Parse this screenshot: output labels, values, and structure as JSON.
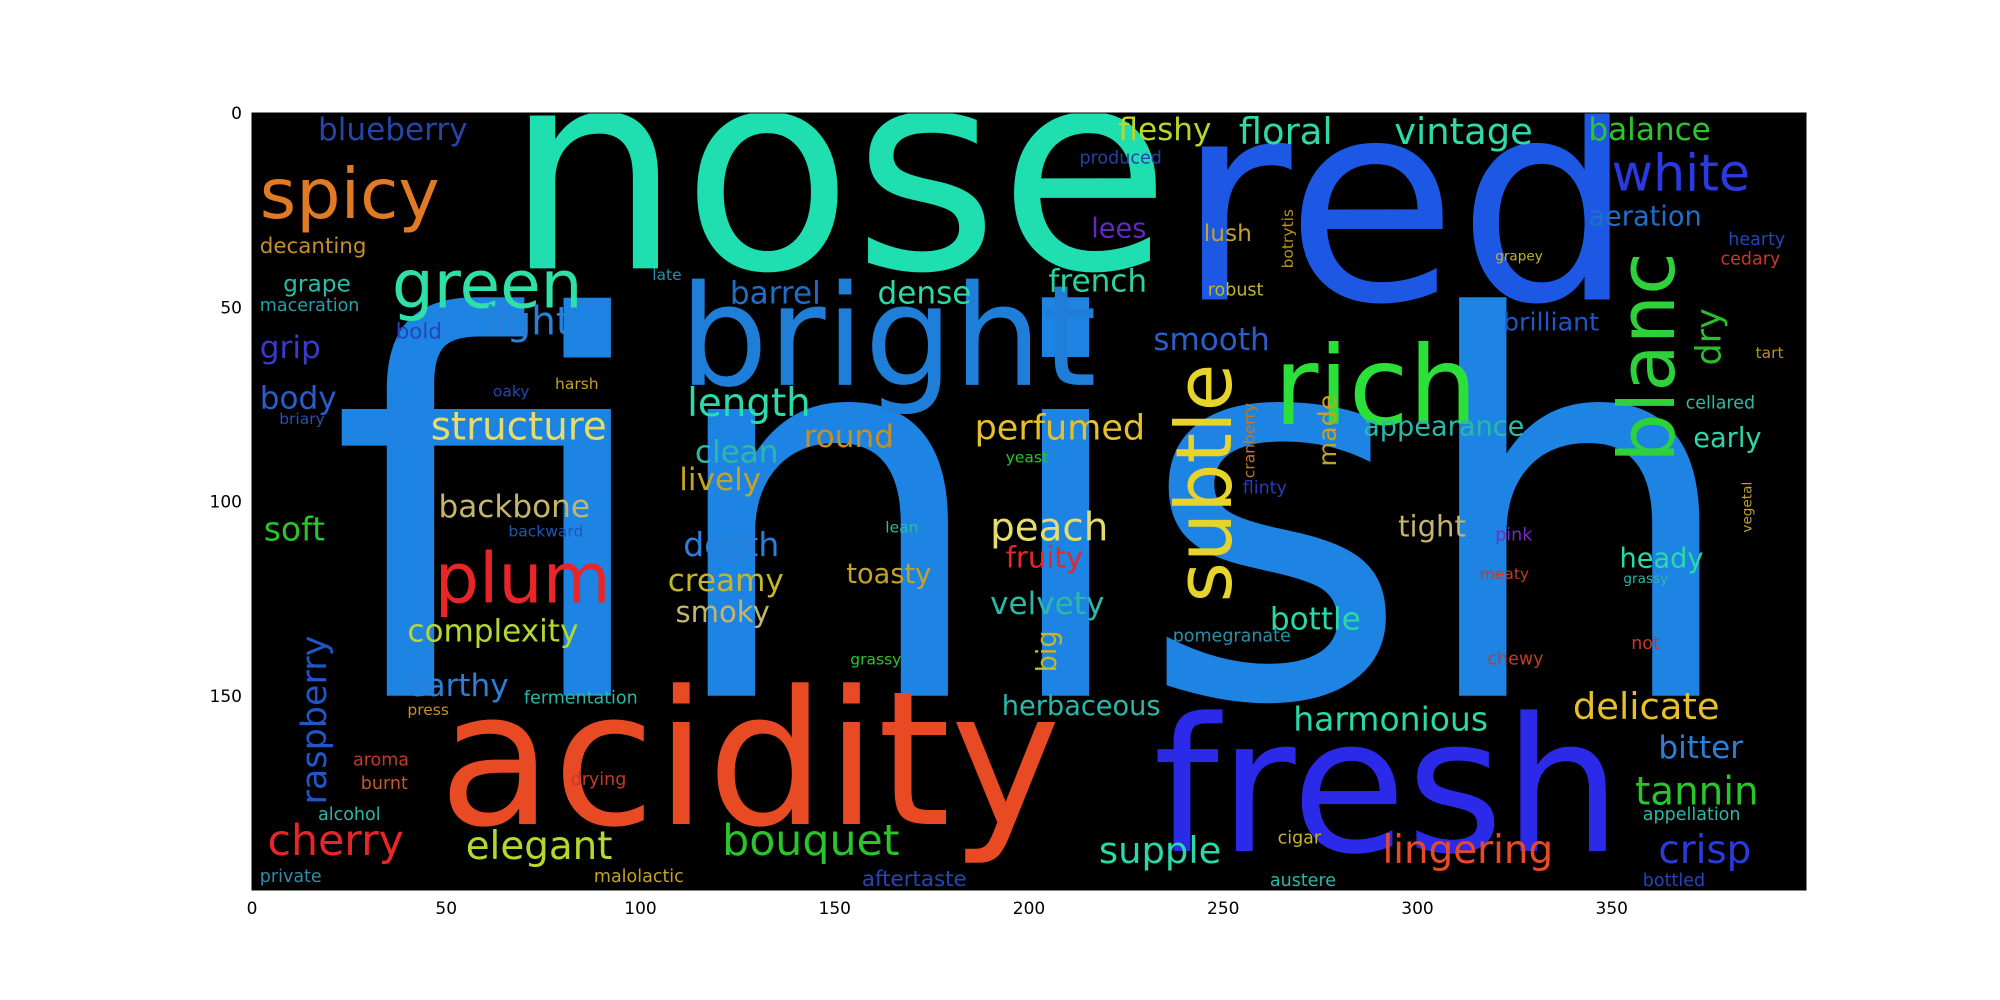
{
  "chart_data": {
    "type": "wordcloud",
    "title": "",
    "xlabel": "",
    "ylabel": "",
    "xlim": [
      0,
      400
    ],
    "ylim": [
      200,
      0
    ],
    "xticks": [
      "0",
      "50",
      "100",
      "150",
      "200",
      "250",
      "300",
      "350"
    ],
    "yticks": [
      "0",
      "50",
      "100",
      "150"
    ],
    "grid": false,
    "words": [
      {
        "text": "finish",
        "x": 20,
        "y": 150,
        "size": 135,
        "color": "#1d84e3",
        "rotate": 0
      },
      {
        "text": "nose",
        "x": 65,
        "y": 40,
        "size": 72,
        "color": "#1fdfb0",
        "rotate": 0
      },
      {
        "text": "red",
        "x": 238,
        "y": 48,
        "size": 72,
        "color": "#1c58e3",
        "rotate": 0
      },
      {
        "text": "acidity",
        "x": 48,
        "y": 183,
        "size": 48,
        "color": "#e84a23",
        "rotate": 0
      },
      {
        "text": "fresh",
        "x": 232,
        "y": 190,
        "size": 48,
        "color": "#2a2ae8",
        "rotate": 0
      },
      {
        "text": "bright",
        "x": 110,
        "y": 70,
        "size": 36,
        "color": "#1f7fd8",
        "rotate": 0
      },
      {
        "text": "rich",
        "x": 263,
        "y": 80,
        "size": 28,
        "color": "#2ce03a",
        "rotate": 0
      },
      {
        "text": "subtle",
        "x": 252,
        "y": 126,
        "size": 20,
        "color": "#e6d42a",
        "rotate": -90
      },
      {
        "text": "blanc",
        "x": 366,
        "y": 90,
        "size": 20,
        "color": "#2dd23a",
        "rotate": -90
      },
      {
        "text": "spicy",
        "x": 2,
        "y": 27,
        "size": 18,
        "color": "#e07a25",
        "rotate": 0
      },
      {
        "text": "green",
        "x": 36,
        "y": 50,
        "size": 17,
        "color": "#2ee0a8",
        "rotate": 0
      },
      {
        "text": "plum",
        "x": 47,
        "y": 126,
        "size": 18,
        "color": "#e8262a",
        "rotate": 0
      },
      {
        "text": "white",
        "x": 350,
        "y": 20,
        "size": 13,
        "color": "#2a3ae0",
        "rotate": 0
      },
      {
        "text": "raspberry",
        "x": 19,
        "y": 178,
        "size": 9,
        "color": "#1f56c8",
        "rotate": -90
      },
      {
        "text": "floral",
        "x": 254,
        "y": 8,
        "size": 9.5,
        "color": "#2ddaa8",
        "rotate": 0
      },
      {
        "text": "vintage",
        "x": 294,
        "y": 8,
        "size": 9.5,
        "color": "#2ddaa8",
        "rotate": 0
      },
      {
        "text": "fleshy",
        "x": 223,
        "y": 7,
        "size": 8,
        "color": "#b5d82a",
        "rotate": 0
      },
      {
        "text": "balance",
        "x": 344,
        "y": 7,
        "size": 8,
        "color": "#2dc42d",
        "rotate": 0
      },
      {
        "text": "blueberry",
        "x": 17,
        "y": 7,
        "size": 8,
        "color": "#2745a8",
        "rotate": 0
      },
      {
        "text": "aeration",
        "x": 344,
        "y": 29,
        "size": 7,
        "color": "#1f6fc9",
        "rotate": 0
      },
      {
        "text": "produced",
        "x": 213,
        "y": 13,
        "size": 4.5,
        "color": "#2340a8",
        "rotate": 0
      },
      {
        "text": "decanting",
        "x": 2,
        "y": 36,
        "size": 5.5,
        "color": "#c48f2a",
        "rotate": 0
      },
      {
        "text": "lees",
        "x": 216,
        "y": 32,
        "size": 7,
        "color": "#6228c0",
        "rotate": 0
      },
      {
        "text": "lush",
        "x": 245,
        "y": 33,
        "size": 6,
        "color": "#c4a225",
        "rotate": 0
      },
      {
        "text": "botrytis",
        "x": 268,
        "y": 40,
        "size": 4,
        "color": "#b8921f",
        "rotate": -90
      },
      {
        "text": "hearty",
        "x": 380,
        "y": 34,
        "size": 4.5,
        "color": "#2545b8",
        "rotate": 0
      },
      {
        "text": "cedary",
        "x": 378,
        "y": 39,
        "size": 4.5,
        "color": "#c43a2a",
        "rotate": 0
      },
      {
        "text": "grapey",
        "x": 320,
        "y": 38,
        "size": 3.5,
        "color": "#c4b52a",
        "rotate": 0
      },
      {
        "text": "grape",
        "x": 8,
        "y": 46,
        "size": 6,
        "color": "#2dbba8",
        "rotate": 0
      },
      {
        "text": "late",
        "x": 103,
        "y": 43,
        "size": 4,
        "color": "#2a8fa8",
        "rotate": 0
      },
      {
        "text": "barrel",
        "x": 123,
        "y": 49,
        "size": 8,
        "color": "#1f6fc9",
        "rotate": 0
      },
      {
        "text": "dense",
        "x": 161,
        "y": 49,
        "size": 8,
        "color": "#2ddaa8",
        "rotate": 0
      },
      {
        "text": "french",
        "x": 205,
        "y": 46,
        "size": 8,
        "color": "#2dd2a0",
        "rotate": 0
      },
      {
        "text": "robust",
        "x": 246,
        "y": 47,
        "size": 4.5,
        "color": "#c4b52a",
        "rotate": 0
      },
      {
        "text": "dry",
        "x": 378,
        "y": 65,
        "size": 9,
        "color": "#2dbc2d",
        "rotate": -90
      },
      {
        "text": "maceration",
        "x": 2,
        "y": 51,
        "size": 4.5,
        "color": "#2a9fa8",
        "rotate": 0
      },
      {
        "text": "light",
        "x": 60,
        "y": 57,
        "size": 10,
        "color": "#2a80d8",
        "rotate": 0
      },
      {
        "text": "bold",
        "x": 37,
        "y": 58,
        "size": 5.5,
        "color": "#2545b8",
        "rotate": 0
      },
      {
        "text": "brilliant",
        "x": 322,
        "y": 56,
        "size": 6.5,
        "color": "#1f56c8",
        "rotate": 0
      },
      {
        "text": "grip",
        "x": 2,
        "y": 63,
        "size": 8,
        "color": "#3a3acb",
        "rotate": 0
      },
      {
        "text": "smooth",
        "x": 232,
        "y": 61,
        "size": 8,
        "color": "#2a5ec8",
        "rotate": 0
      },
      {
        "text": "tart",
        "x": 387,
        "y": 63,
        "size": 4,
        "color": "#b8921f",
        "rotate": 0
      },
      {
        "text": "harsh",
        "x": 78,
        "y": 71,
        "size": 4,
        "color": "#c4a225",
        "rotate": 0
      },
      {
        "text": "oaky",
        "x": 62,
        "y": 73,
        "size": 4,
        "color": "#2545b8",
        "rotate": 0
      },
      {
        "text": "cranberry",
        "x": 258,
        "y": 94,
        "size": 4,
        "color": "#c47a25",
        "rotate": -90
      },
      {
        "text": "body",
        "x": 2,
        "y": 76,
        "size": 8,
        "color": "#2a5ec8",
        "rotate": 0
      },
      {
        "text": "briary",
        "x": 7,
        "y": 80,
        "size": 4,
        "color": "#2a50b8",
        "rotate": 0
      },
      {
        "text": "length",
        "x": 112,
        "y": 78,
        "size": 10,
        "color": "#2ddaa8",
        "rotate": 0
      },
      {
        "text": "structure",
        "x": 46,
        "y": 84,
        "size": 10,
        "color": "#e6dc6a",
        "rotate": 0
      },
      {
        "text": "perfumed",
        "x": 186,
        "y": 84,
        "size": 9,
        "color": "#e6c02a",
        "rotate": 0
      },
      {
        "text": "made",
        "x": 279,
        "y": 91,
        "size": 6.5,
        "color": "#c4a225",
        "rotate": -90
      },
      {
        "text": "appearance",
        "x": 286,
        "y": 83,
        "size": 7,
        "color": "#2ab8a8",
        "rotate": 0
      },
      {
        "text": "cellared",
        "x": 369,
        "y": 76,
        "size": 4.5,
        "color": "#2abba8",
        "rotate": 0
      },
      {
        "text": "early",
        "x": 371,
        "y": 86,
        "size": 7,
        "color": "#2ad8a8",
        "rotate": 0
      },
      {
        "text": "round",
        "x": 142,
        "y": 86,
        "size": 8,
        "color": "#c48f2a",
        "rotate": 0
      },
      {
        "text": "clean",
        "x": 114,
        "y": 90,
        "size": 8,
        "color": "#2ab8a8",
        "rotate": 0
      },
      {
        "text": "yeast",
        "x": 194,
        "y": 90,
        "size": 4,
        "color": "#2ac42d",
        "rotate": 0
      },
      {
        "text": "lively",
        "x": 110,
        "y": 97,
        "size": 8,
        "color": "#c4a225",
        "rotate": 0
      },
      {
        "text": "flinty",
        "x": 255,
        "y": 98,
        "size": 4.5,
        "color": "#2a3ab8",
        "rotate": 0
      },
      {
        "text": "vegetal",
        "x": 386,
        "y": 108,
        "size": 3.5,
        "color": "#c4a225",
        "rotate": -90
      },
      {
        "text": "backbone",
        "x": 48,
        "y": 104,
        "size": 8,
        "color": "#c4b56a",
        "rotate": 0
      },
      {
        "text": "backward",
        "x": 66,
        "y": 109,
        "size": 4,
        "color": "#1f56b8",
        "rotate": 0
      },
      {
        "text": "soft",
        "x": 3,
        "y": 110,
        "size": 8.5,
        "color": "#2ac42d",
        "rotate": 0
      },
      {
        "text": "peach",
        "x": 190,
        "y": 110,
        "size": 10,
        "color": "#e6dc6a",
        "rotate": 0
      },
      {
        "text": "tight",
        "x": 295,
        "y": 109,
        "size": 7.5,
        "color": "#c4b56a",
        "rotate": 0
      },
      {
        "text": "lean",
        "x": 163,
        "y": 108,
        "size": 4,
        "color": "#2abba8",
        "rotate": 0
      },
      {
        "text": "pink",
        "x": 320,
        "y": 110,
        "size": 4.5,
        "color": "#7a2ac0",
        "rotate": 0
      },
      {
        "text": "depth",
        "x": 111,
        "y": 114,
        "size": 8.5,
        "color": "#2a80d8",
        "rotate": 0
      },
      {
        "text": "fruity",
        "x": 194,
        "y": 117,
        "size": 7.5,
        "color": "#e8262a",
        "rotate": 0
      },
      {
        "text": "heady",
        "x": 352,
        "y": 117,
        "size": 7,
        "color": "#2ad8a8",
        "rotate": 0
      },
      {
        "text": "toasty",
        "x": 153,
        "y": 121,
        "size": 7,
        "color": "#c4a225",
        "rotate": 0
      },
      {
        "text": "meaty",
        "x": 316,
        "y": 120,
        "size": 4,
        "color": "#c43a2a",
        "rotate": 0
      },
      {
        "text": "grassy",
        "x": 353,
        "y": 121,
        "size": 3.5,
        "color": "#2ab8a8",
        "rotate": 0
      },
      {
        "text": "creamy",
        "x": 107,
        "y": 123,
        "size": 8,
        "color": "#c4b52a",
        "rotate": 0
      },
      {
        "text": "velvety",
        "x": 190,
        "y": 129,
        "size": 8,
        "color": "#2ab8a8",
        "rotate": 0
      },
      {
        "text": "smoky",
        "x": 109,
        "y": 131,
        "size": 7.5,
        "color": "#c4b56a",
        "rotate": 0
      },
      {
        "text": "bottle",
        "x": 262,
        "y": 133,
        "size": 8,
        "color": "#2ad8a8",
        "rotate": 0
      },
      {
        "text": "complexity",
        "x": 40,
        "y": 136,
        "size": 8,
        "color": "#b5d82a",
        "rotate": 0
      },
      {
        "text": "big",
        "x": 207,
        "y": 144,
        "size": 7,
        "color": "#c4b52a",
        "rotate": -90
      },
      {
        "text": "pomegranate",
        "x": 237,
        "y": 136,
        "size": 4.5,
        "color": "#2a8fa8",
        "rotate": 0
      },
      {
        "text": "not",
        "x": 355,
        "y": 138,
        "size": 4.5,
        "color": "#c43a2a",
        "rotate": 0
      },
      {
        "text": "chewy",
        "x": 318,
        "y": 142,
        "size": 4.5,
        "color": "#c43a2a",
        "rotate": 0
      },
      {
        "text": "grassy",
        "x": 154,
        "y": 142,
        "size": 4,
        "color": "#2ac42d",
        "rotate": 0
      },
      {
        "text": "earthy",
        "x": 40,
        "y": 150,
        "size": 8,
        "color": "#2a80d8",
        "rotate": 0
      },
      {
        "text": "fermentation",
        "x": 70,
        "y": 152,
        "size": 4.5,
        "color": "#2ab8a8",
        "rotate": 0
      },
      {
        "text": "press",
        "x": 40,
        "y": 155,
        "size": 4,
        "color": "#c48f2a",
        "rotate": 0
      },
      {
        "text": "herbaceous",
        "x": 193,
        "y": 155,
        "size": 7,
        "color": "#2ab8a8",
        "rotate": 0
      },
      {
        "text": "harmonious",
        "x": 268,
        "y": 159,
        "size": 8.5,
        "color": "#2ad8a8",
        "rotate": 0
      },
      {
        "text": "delicate",
        "x": 340,
        "y": 156,
        "size": 9.5,
        "color": "#e6c02a",
        "rotate": 0
      },
      {
        "text": "bitter",
        "x": 362,
        "y": 166,
        "size": 8,
        "color": "#2a80d8",
        "rotate": 0
      },
      {
        "text": "aroma",
        "x": 26,
        "y": 168,
        "size": 4.5,
        "color": "#c43a2a",
        "rotate": 0
      },
      {
        "text": "burnt",
        "x": 28,
        "y": 174,
        "size": 4.5,
        "color": "#c4582a",
        "rotate": 0
      },
      {
        "text": "drying",
        "x": 82,
        "y": 173,
        "size": 4.5,
        "color": "#c43a2a",
        "rotate": 0
      },
      {
        "text": "tannin",
        "x": 356,
        "y": 178,
        "size": 10,
        "color": "#2ac42d",
        "rotate": 0
      },
      {
        "text": "alcohol",
        "x": 17,
        "y": 182,
        "size": 4.5,
        "color": "#2ab8a8",
        "rotate": 0
      },
      {
        "text": "appellation",
        "x": 358,
        "y": 182,
        "size": 4.5,
        "color": "#2ab8a8",
        "rotate": 0
      },
      {
        "text": "cherry",
        "x": 4,
        "y": 191,
        "size": 11,
        "color": "#e8262a",
        "rotate": 0
      },
      {
        "text": "elegant",
        "x": 55,
        "y": 192,
        "size": 10,
        "color": "#b5d82a",
        "rotate": 0
      },
      {
        "text": "bouquet",
        "x": 121,
        "y": 191,
        "size": 11,
        "color": "#2ac42d",
        "rotate": 0
      },
      {
        "text": "supple",
        "x": 218,
        "y": 193,
        "size": 9.5,
        "color": "#2ad8a8",
        "rotate": 0
      },
      {
        "text": "cigar",
        "x": 264,
        "y": 188,
        "size": 4.5,
        "color": "#c4b52a",
        "rotate": 0
      },
      {
        "text": "lingering",
        "x": 291,
        "y": 193,
        "size": 10,
        "color": "#e84a23",
        "rotate": 0
      },
      {
        "text": "crisp",
        "x": 362,
        "y": 193,
        "size": 10,
        "color": "#2a3ae0",
        "rotate": 0
      },
      {
        "text": "private",
        "x": 2,
        "y": 198,
        "size": 4.5,
        "color": "#2a8fa8",
        "rotate": 0
      },
      {
        "text": "malolactic",
        "x": 88,
        "y": 198,
        "size": 4.5,
        "color": "#c4a225",
        "rotate": 0
      },
      {
        "text": "aftertaste",
        "x": 157,
        "y": 199,
        "size": 5.5,
        "color": "#2545b8",
        "rotate": 0
      },
      {
        "text": "austere",
        "x": 262,
        "y": 199,
        "size": 4.5,
        "color": "#2ab8a8",
        "rotate": 0
      },
      {
        "text": "bottled",
        "x": 358,
        "y": 199,
        "size": 4.5,
        "color": "#2545b8",
        "rotate": 0
      }
    ]
  }
}
